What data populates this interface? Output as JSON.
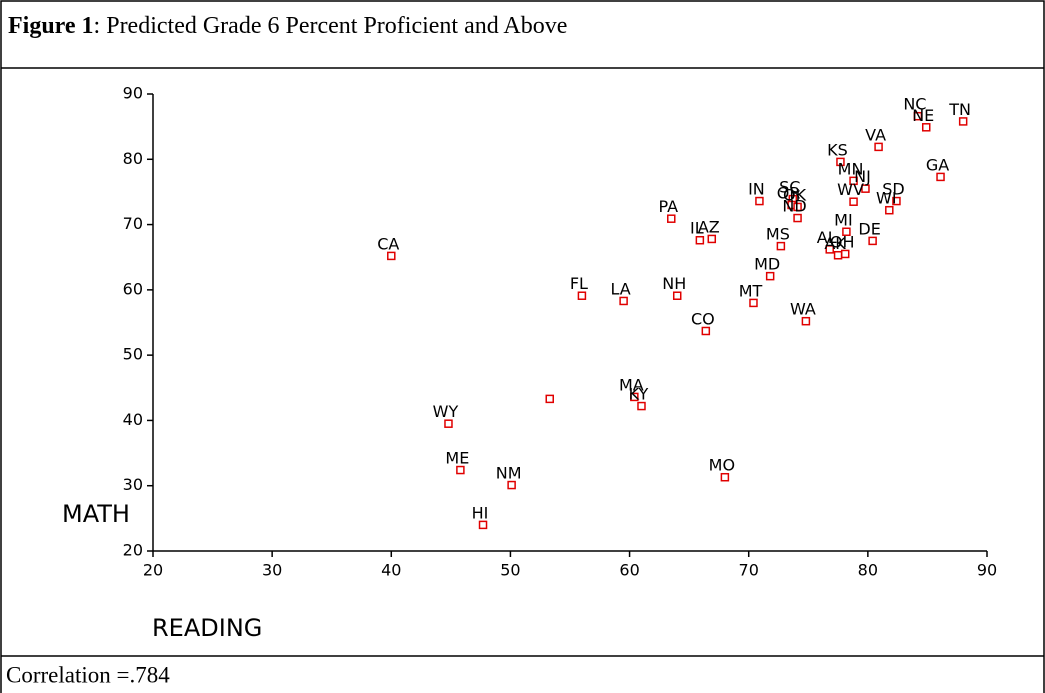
{
  "chart_data": {
    "type": "scatter",
    "figure_label": "Figure 1",
    "title": ": Predicted Grade 6 Percent Proficient and Above",
    "x_label": "READING",
    "y_label": "MATH",
    "note": "Correlation =.784",
    "color": "#e00000",
    "xlim": [
      20,
      90
    ],
    "xticks": [
      20,
      30,
      40,
      50,
      60,
      70,
      80,
      90
    ],
    "ylim": [
      20,
      90
    ],
    "yticks": [
      20,
      30,
      40,
      50,
      60,
      70,
      80,
      90
    ],
    "point_labels": [
      "CA",
      "FL",
      "LA",
      "PA",
      "IL",
      "AZ",
      "NH",
      "IN",
      "CO",
      "MS",
      "MD",
      "MT",
      "WA",
      "SC",
      "OR",
      "OK",
      "ND",
      "KS",
      "VA",
      "MN",
      "NJ",
      "WV",
      "SD",
      "WI",
      "MI",
      "DE",
      "AL",
      "AK",
      "OH",
      "NC",
      "NE",
      "TN",
      "GA",
      "MA",
      "KY",
      null,
      "WY",
      "ME",
      "NM",
      "MO",
      "HI"
    ],
    "x": [
      40.0,
      56.0,
      59.5,
      63.5,
      65.9,
      66.9,
      64.0,
      70.9,
      66.4,
      72.7,
      71.8,
      70.4,
      74.8,
      73.7,
      73.6,
      74.1,
      74.1,
      77.7,
      80.9,
      78.8,
      79.8,
      78.8,
      82.4,
      81.8,
      78.2,
      80.4,
      76.8,
      77.5,
      78.1,
      84.2,
      84.9,
      88.0,
      86.1,
      60.4,
      61.0,
      53.3,
      44.8,
      45.8,
      50.1,
      68.0,
      47.7
    ],
    "y": [
      65.2,
      59.1,
      58.3,
      70.9,
      67.6,
      67.8,
      59.1,
      73.6,
      53.7,
      66.7,
      62.1,
      58.0,
      55.2,
      73.9,
      73.0,
      72.7,
      71.0,
      79.6,
      81.9,
      76.7,
      75.5,
      73.5,
      73.6,
      72.2,
      68.9,
      67.5,
      66.2,
      65.3,
      65.5,
      86.6,
      84.9,
      85.8,
      77.3,
      43.6,
      42.2,
      43.3,
      39.5,
      32.4,
      30.1,
      31.3,
      24.0
    ]
  }
}
